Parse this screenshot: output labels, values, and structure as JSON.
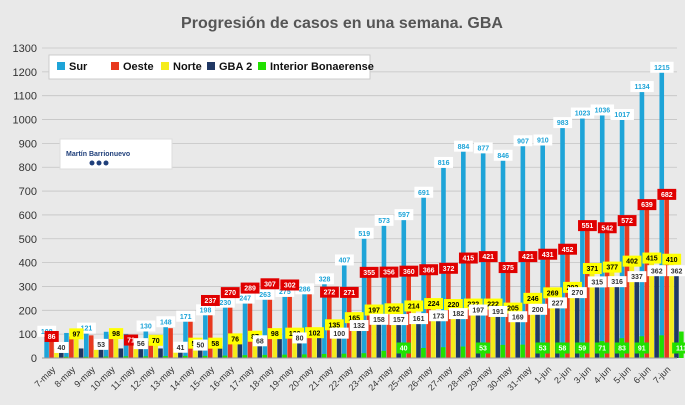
{
  "chart_data": {
    "type": "bar",
    "title": "Progresión de casos en una semana. GBA",
    "ylim": [
      0,
      1300
    ],
    "yticks": [
      0,
      100,
      200,
      300,
      400,
      500,
      600,
      700,
      800,
      900,
      1000,
      1100,
      1200,
      1300
    ],
    "grid": true,
    "legend_position": "top-left",
    "categories": [
      "7-may",
      "8-may",
      "9-may",
      "10-may",
      "11-may",
      "12-may",
      "13-may",
      "14-may",
      "15-may",
      "16-may",
      "17-may",
      "18-may",
      "19-may",
      "20-may",
      "21-may",
      "22-may",
      "23-may",
      "24-may",
      "25-may",
      "26-may",
      "27-may",
      "28-may",
      "29-may",
      "30-may",
      "31-may",
      "1-jun",
      "2-jun",
      "3-jun",
      "4-jun",
      "5-jun",
      "6-jun",
      "7-jun"
    ],
    "series": [
      {
        "name": "Sur",
        "color": "#1ea4d8",
        "label_bg": "#ffffff",
        "label_fg": "#1ea4d8",
        "values": [
          108,
          105,
          121,
          110,
          101,
          130,
          148,
          171,
          198,
          230,
          247,
          263,
          275,
          286,
          328,
          407,
          519,
          573,
          597,
          691,
          816,
          884,
          877,
          846,
          907,
          910,
          983,
          1023,
          1036,
          1017,
          1134,
          1215
        ]
      },
      {
        "name": "Oeste",
        "color": "#e8391e",
        "label_bg": "#e00000",
        "label_fg": "#ffffff",
        "values": [
          86,
          90,
          95,
          98,
          71,
          70,
          125,
          190,
          237,
          270,
          289,
          307,
          302,
          285,
          272,
          271,
          355,
          356,
          360,
          366,
          372,
          415,
          421,
          375,
          421,
          431,
          452,
          551,
          542,
          572,
          639,
          682
        ]
      },
      {
        "name": "Norte",
        "color": "#f5ec1a",
        "label_bg": "#ffff00",
        "label_fg": "#000000",
        "values": [
          40,
          97,
          53,
          98,
          56,
          70,
          41,
          58,
          58,
          76,
          87,
          98,
          100,
          102,
          135,
          165,
          197,
          202,
          214,
          224,
          220,
          222,
          222,
          205,
          246,
          269,
          292,
          371,
          377,
          402,
          415,
          410
        ]
      },
      {
        "name": "GBA 2",
        "color": "#203864",
        "label_bg": "#ffffff",
        "label_fg": "#333333",
        "values": [
          40,
          40,
          53,
          40,
          56,
          40,
          41,
          50,
          50,
          60,
          68,
          80,
          80,
          85,
          100,
          132,
          158,
          157,
          161,
          173,
          182,
          197,
          191,
          169,
          200,
          227,
          270,
          315,
          316,
          337,
          362,
          362
        ]
      },
      {
        "name": "Interior Bonaerense",
        "color": "#22e000",
        "label_bg": "#22e000",
        "label_fg": "#ffffff",
        "values": [
          5,
          5,
          6,
          7,
          7,
          8,
          9,
          9,
          10,
          12,
          13,
          14,
          15,
          17,
          18,
          20,
          30,
          40,
          42,
          45,
          48,
          53,
          55,
          56,
          53,
          58,
          59,
          71,
          83,
          91,
          95,
          111
        ]
      }
    ]
  },
  "data_labels": [
    {
      "series": 0,
      "index": 0,
      "text": "108"
    },
    {
      "series": 0,
      "index": 2,
      "text": "121"
    },
    {
      "series": 0,
      "index": 5,
      "text": "130"
    },
    {
      "series": 0,
      "index": 6,
      "text": "148"
    },
    {
      "series": 0,
      "index": 7,
      "text": "171"
    },
    {
      "series": 0,
      "index": 8,
      "text": "198"
    },
    {
      "series": 0,
      "index": 9,
      "text": "230"
    },
    {
      "series": 0,
      "index": 10,
      "text": "247"
    },
    {
      "series": 0,
      "index": 11,
      "text": "263"
    },
    {
      "series": 0,
      "index": 12,
      "text": "275"
    },
    {
      "series": 0,
      "index": 13,
      "text": "286"
    },
    {
      "series": 0,
      "index": 14,
      "text": "328"
    },
    {
      "series": 0,
      "index": 15,
      "text": "407"
    },
    {
      "series": 0,
      "index": 16,
      "text": "519"
    },
    {
      "series": 0,
      "index": 17,
      "text": "573"
    },
    {
      "series": 0,
      "index": 18,
      "text": "597"
    },
    {
      "series": 0,
      "index": 19,
      "text": "691"
    },
    {
      "series": 0,
      "index": 20,
      "text": "816"
    },
    {
      "series": 0,
      "index": 21,
      "text": "884"
    },
    {
      "series": 0,
      "index": 22,
      "text": "877"
    },
    {
      "series": 0,
      "index": 23,
      "text": "846"
    },
    {
      "series": 0,
      "index": 24,
      "text": "907"
    },
    {
      "series": 0,
      "index": 25,
      "text": "910"
    },
    {
      "series": 0,
      "index": 26,
      "text": "983"
    },
    {
      "series": 0,
      "index": 27,
      "text": "1023"
    },
    {
      "series": 0,
      "index": 28,
      "text": "1036"
    },
    {
      "series": 0,
      "index": 29,
      "text": "1017"
    },
    {
      "series": 0,
      "index": 30,
      "text": "1134"
    },
    {
      "series": 0,
      "index": 31,
      "text": "1215"
    },
    {
      "series": 1,
      "index": 0,
      "text": "86"
    },
    {
      "series": 1,
      "index": 4,
      "text": "71"
    },
    {
      "series": 1,
      "index": 8,
      "text": "237"
    },
    {
      "series": 1,
      "index": 9,
      "text": "270"
    },
    {
      "series": 1,
      "index": 10,
      "text": "289"
    },
    {
      "series": 1,
      "index": 11,
      "text": "307"
    },
    {
      "series": 1,
      "index": 12,
      "text": "302"
    },
    {
      "series": 1,
      "index": 14,
      "text": "272"
    },
    {
      "series": 1,
      "index": 15,
      "text": "271"
    },
    {
      "series": 1,
      "index": 16,
      "text": "355"
    },
    {
      "series": 1,
      "index": 17,
      "text": "356"
    },
    {
      "series": 1,
      "index": 18,
      "text": "360"
    },
    {
      "series": 1,
      "index": 19,
      "text": "366"
    },
    {
      "series": 1,
      "index": 20,
      "text": "372"
    },
    {
      "series": 1,
      "index": 21,
      "text": "415"
    },
    {
      "series": 1,
      "index": 22,
      "text": "421"
    },
    {
      "series": 1,
      "index": 23,
      "text": "375"
    },
    {
      "series": 1,
      "index": 24,
      "text": "421"
    },
    {
      "series": 1,
      "index": 25,
      "text": "431"
    },
    {
      "series": 1,
      "index": 26,
      "text": "452"
    },
    {
      "series": 1,
      "index": 27,
      "text": "551"
    },
    {
      "series": 1,
      "index": 28,
      "text": "542"
    },
    {
      "series": 1,
      "index": 29,
      "text": "572"
    },
    {
      "series": 1,
      "index": 30,
      "text": "639"
    },
    {
      "series": 1,
      "index": 31,
      "text": "682"
    },
    {
      "series": 2,
      "index": 1,
      "text": "97"
    },
    {
      "series": 2,
      "index": 3,
      "text": "98"
    },
    {
      "series": 2,
      "index": 5,
      "text": "70"
    },
    {
      "series": 2,
      "index": 7,
      "text": "58"
    },
    {
      "series": 2,
      "index": 8,
      "text": "58"
    },
    {
      "series": 2,
      "index": 9,
      "text": "76"
    },
    {
      "series": 2,
      "index": 10,
      "text": "87"
    },
    {
      "series": 2,
      "index": 11,
      "text": "98"
    },
    {
      "series": 2,
      "index": 12,
      "text": "100"
    },
    {
      "series": 2,
      "index": 13,
      "text": "102"
    },
    {
      "series": 2,
      "index": 14,
      "text": "135"
    },
    {
      "series": 2,
      "index": 15,
      "text": "165"
    },
    {
      "series": 2,
      "index": 16,
      "text": "197"
    },
    {
      "series": 2,
      "index": 17,
      "text": "202"
    },
    {
      "series": 2,
      "index": 18,
      "text": "214"
    },
    {
      "series": 2,
      "index": 19,
      "text": "224"
    },
    {
      "series": 2,
      "index": 20,
      "text": "220"
    },
    {
      "series": 2,
      "index": 21,
      "text": "222"
    },
    {
      "series": 2,
      "index": 22,
      "text": "222"
    },
    {
      "series": 2,
      "index": 23,
      "text": "205"
    },
    {
      "series": 2,
      "index": 24,
      "text": "246"
    },
    {
      "series": 2,
      "index": 25,
      "text": "269"
    },
    {
      "series": 2,
      "index": 26,
      "text": "292"
    },
    {
      "series": 2,
      "index": 27,
      "text": "371"
    },
    {
      "series": 2,
      "index": 28,
      "text": "377"
    },
    {
      "series": 2,
      "index": 29,
      "text": "402"
    },
    {
      "series": 2,
      "index": 30,
      "text": "415"
    },
    {
      "series": 2,
      "index": 31,
      "text": "410"
    },
    {
      "series": 3,
      "index": 0,
      "text": "40"
    },
    {
      "series": 3,
      "index": 2,
      "text": "53"
    },
    {
      "series": 3,
      "index": 4,
      "text": "56"
    },
    {
      "series": 3,
      "index": 6,
      "text": "41"
    },
    {
      "series": 3,
      "index": 7,
      "text": "50"
    },
    {
      "series": 3,
      "index": 10,
      "text": "68"
    },
    {
      "series": 3,
      "index": 12,
      "text": "80"
    },
    {
      "series": 3,
      "index": 14,
      "text": "100"
    },
    {
      "series": 3,
      "index": 15,
      "text": "132"
    },
    {
      "series": 3,
      "index": 16,
      "text": "158"
    },
    {
      "series": 3,
      "index": 17,
      "text": "157"
    },
    {
      "series": 3,
      "index": 18,
      "text": "161"
    },
    {
      "series": 3,
      "index": 19,
      "text": "173"
    },
    {
      "series": 3,
      "index": 20,
      "text": "182"
    },
    {
      "series": 3,
      "index": 21,
      "text": "197"
    },
    {
      "series": 3,
      "index": 22,
      "text": "191"
    },
    {
      "series": 3,
      "index": 23,
      "text": "169"
    },
    {
      "series": 3,
      "index": 24,
      "text": "200"
    },
    {
      "series": 3,
      "index": 25,
      "text": "227"
    },
    {
      "series": 3,
      "index": 26,
      "text": "270"
    },
    {
      "series": 3,
      "index": 27,
      "text": "315"
    },
    {
      "series": 3,
      "index": 28,
      "text": "316"
    },
    {
      "series": 3,
      "index": 29,
      "text": "337"
    },
    {
      "series": 3,
      "index": 30,
      "text": "362"
    },
    {
      "series": 3,
      "index": 31,
      "text": "362"
    },
    {
      "series": 4,
      "index": 17,
      "text": "40"
    },
    {
      "series": 4,
      "index": 21,
      "text": "53"
    },
    {
      "series": 4,
      "index": 24,
      "text": "53"
    },
    {
      "series": 4,
      "index": 25,
      "text": "58"
    },
    {
      "series": 4,
      "index": 26,
      "text": "59"
    },
    {
      "series": 4,
      "index": 27,
      "text": "71"
    },
    {
      "series": 4,
      "index": 28,
      "text": "83"
    },
    {
      "series": 4,
      "index": 29,
      "text": "91"
    },
    {
      "series": 4,
      "index": 31,
      "text": "111"
    }
  ],
  "watermark": {
    "name": "Martín Barrionuevo",
    "icons": [
      "twitter-icon",
      "instagram-icon",
      "globe-icon"
    ]
  }
}
